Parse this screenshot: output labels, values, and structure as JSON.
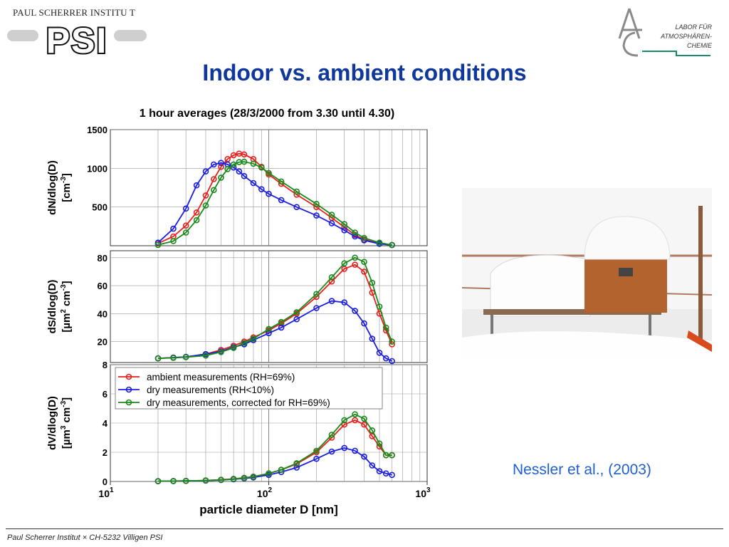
{
  "header": {
    "institute": "PAUL SCHERRER INSTITU T",
    "logo_text": "PSI",
    "lab_line1": "LABOR FÜR",
    "lab_line2": "ATMOSPHÄREN-",
    "lab_line3": "CHEMIE"
  },
  "slide": {
    "title": "Indoor vs. ambient conditions",
    "citation": "Nessler et al., (2003)",
    "footer": "Paul Scherrer Institut × CH-5232 Villigen PSI"
  },
  "colors": {
    "title": "#10389a",
    "citation": "#1f5fcf",
    "ambient": "#e8201e",
    "dry": "#1c1ee0",
    "corrected": "#1a8a1a"
  },
  "chart_data": {
    "type": "line",
    "title": "1 hour averages (28/3/2000 from 3.30 until 4.30)",
    "xlabel": "particle diameter D [nm]",
    "xscale": "log",
    "xlim": [
      10,
      1000
    ],
    "x_ticks": [
      "10",
      "10",
      "10"
    ],
    "x_tick_exponents": [
      "1",
      "2",
      "3"
    ],
    "legend": {
      "panel": "dV/dlog(D)",
      "placement": "top-left"
    },
    "grid": true,
    "series_names": [
      "ambient measurements (RH=69%)",
      "dry measurements (RH<10%)",
      "dry measurements, corrected for RH=69%)"
    ],
    "panels": [
      {
        "ylabel_line1": "dN/dlog(D)",
        "ylabel_unit": "[cm",
        "ylabel_sup": "-3",
        "ylabel_end": "]",
        "ylim": [
          0,
          1500
        ],
        "yticks": [
          500,
          1000,
          1500
        ],
        "series": [
          {
            "x": [
              20,
              25,
              30,
              35,
              40,
              45,
              50,
              55,
              60,
              65,
              70,
              80,
              90,
              100,
              120,
              150,
              200,
              250,
              300,
              350,
              400,
              500,
              600
            ],
            "y": [
              30,
              120,
              260,
              430,
              650,
              860,
              1020,
              1120,
              1170,
              1190,
              1180,
              1120,
              1020,
              920,
              800,
              660,
              500,
              360,
              240,
              140,
              80,
              30,
              10
            ]
          },
          {
            "x": [
              20,
              25,
              30,
              35,
              40,
              45,
              50,
              55,
              60,
              65,
              70,
              80,
              90,
              100,
              120,
              150,
              200,
              250,
              300,
              350,
              400,
              500,
              600
            ],
            "y": [
              40,
              220,
              480,
              780,
              960,
              1050,
              1070,
              1050,
              1010,
              960,
              900,
              810,
              730,
              670,
              590,
              500,
              390,
              290,
              200,
              120,
              70,
              25,
              8
            ]
          },
          {
            "x": [
              20,
              25,
              30,
              35,
              40,
              45,
              50,
              55,
              60,
              65,
              70,
              80,
              90,
              100,
              120,
              150,
              200,
              250,
              300,
              350,
              400,
              500,
              600
            ],
            "y": [
              10,
              60,
              170,
              330,
              520,
              720,
              880,
              990,
              1050,
              1080,
              1085,
              1060,
              1010,
              940,
              830,
              700,
              540,
              400,
              280,
              170,
              100,
              40,
              10
            ]
          }
        ]
      },
      {
        "ylabel_line1": "dS/dlog(D)",
        "ylabel_unit": "[µm",
        "ylabel_sup": "2",
        "ylabel_mid": " cm",
        "ylabel_sup2": "-3",
        "ylabel_end": "]",
        "ylim": [
          5,
          85
        ],
        "yticks": [
          20,
          40,
          60,
          80
        ],
        "series": [
          {
            "x": [
              20,
              25,
              30,
              40,
              50,
              60,
              70,
              80,
              100,
              120,
              150,
              200,
              250,
              300,
              350,
              400,
              450,
              500,
              550,
              600
            ],
            "y": [
              8,
              8.5,
              9,
              11,
              14,
              17,
              20,
              23,
              28,
              33,
              40,
              52,
              63,
              72,
              75,
              70,
              55,
              40,
              28,
              18
            ]
          },
          {
            "x": [
              20,
              25,
              30,
              40,
              50,
              60,
              70,
              80,
              100,
              120,
              150,
              200,
              250,
              300,
              350,
              400,
              450,
              500,
              550,
              600
            ],
            "y": [
              8,
              8.5,
              9,
              11,
              13,
              16,
              18,
              21,
              26,
              30,
              36,
              44,
              49,
              48,
              42,
              33,
              22,
              12,
              8,
              6
            ]
          },
          {
            "x": [
              20,
              25,
              30,
              40,
              50,
              60,
              70,
              80,
              100,
              120,
              150,
              200,
              250,
              300,
              350,
              400,
              450,
              500,
              550,
              600
            ],
            "y": [
              8,
              8.3,
              8.8,
              10,
              12.5,
              15.5,
              19,
              22,
              29,
              34,
              41,
              54,
              66,
              76,
              80,
              77,
              62,
              45,
              30,
              20
            ]
          }
        ]
      },
      {
        "ylabel_line1": "dV/dlog(D)",
        "ylabel_unit": "[µm",
        "ylabel_sup": "3",
        "ylabel_mid": " cm",
        "ylabel_sup2": "-3",
        "ylabel_end": "]",
        "ylim": [
          0,
          8
        ],
        "yticks": [
          0,
          2,
          4,
          6,
          8
        ],
        "series": [
          {
            "x": [
              20,
              25,
              30,
              40,
              50,
              60,
              70,
              80,
              100,
              120,
              150,
              200,
              250,
              300,
              350,
              400,
              450,
              500,
              550,
              600
            ],
            "y": [
              0.02,
              0.03,
              0.04,
              0.07,
              0.12,
              0.18,
              0.25,
              0.33,
              0.55,
              0.8,
              1.2,
              2.0,
              3.0,
              3.9,
              4.2,
              3.9,
              3.1,
              2.4,
              1.8,
              1.8
            ]
          },
          {
            "x": [
              20,
              25,
              30,
              40,
              50,
              60,
              70,
              80,
              100,
              120,
              150,
              200,
              250,
              300,
              350,
              400,
              450,
              500,
              550,
              600
            ],
            "y": [
              0.02,
              0.03,
              0.04,
              0.06,
              0.1,
              0.15,
              0.21,
              0.28,
              0.45,
              0.65,
              0.95,
              1.55,
              2.05,
              2.3,
              2.1,
              1.7,
              1.1,
              0.7,
              0.55,
              0.45
            ]
          },
          {
            "x": [
              20,
              25,
              30,
              40,
              50,
              60,
              70,
              80,
              100,
              120,
              150,
              200,
              250,
              300,
              350,
              400,
              450,
              500,
              550,
              600
            ],
            "y": [
              0.02,
              0.03,
              0.04,
              0.07,
              0.11,
              0.17,
              0.24,
              0.32,
              0.55,
              0.8,
              1.25,
              2.1,
              3.2,
              4.2,
              4.6,
              4.3,
              3.5,
              2.6,
              1.8,
              1.8
            ]
          }
        ]
      }
    ]
  }
}
